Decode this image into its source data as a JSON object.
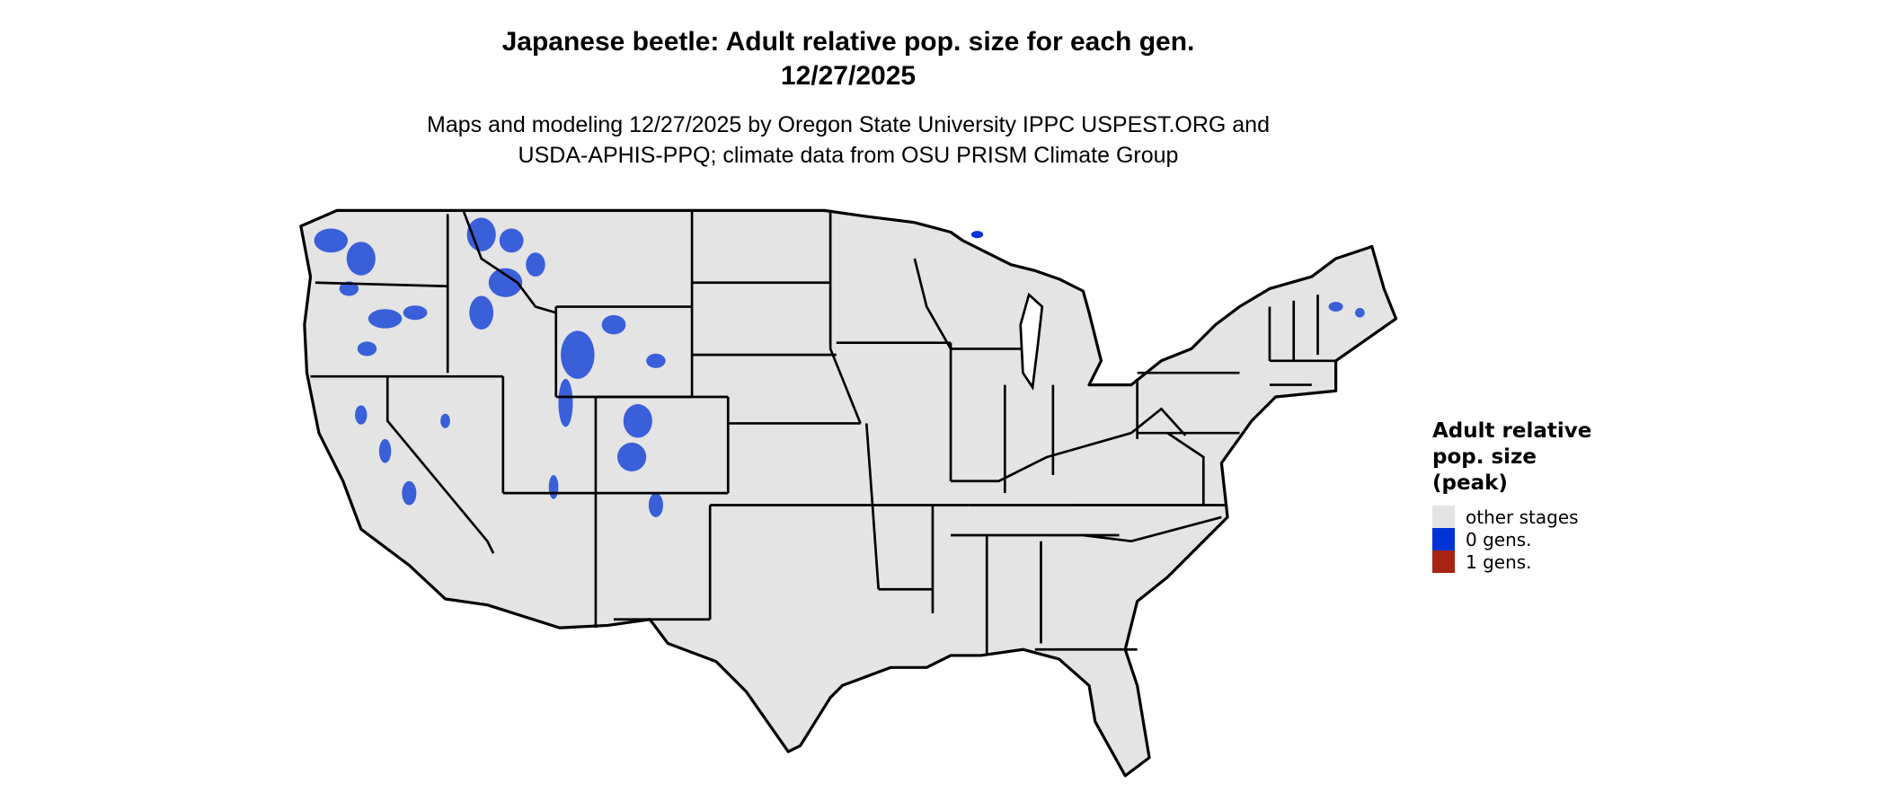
{
  "title": {
    "line1": "Japanese beetle: Adult relative pop. size for each gen.",
    "line2": "12/27/2025"
  },
  "subtitle": {
    "line1": "Maps and modeling 12/27/2025 by Oregon State University IPPC USPEST.ORG and",
    "line2": "USDA-APHIS-PPQ; climate data from OSU PRISM Climate Group"
  },
  "map": {
    "region": "Contiguous United States",
    "land_color": "#e4e4e4",
    "border_color": "#000000"
  },
  "legend": {
    "title_lines": [
      "Adult relative",
      "pop. size",
      "(peak)"
    ],
    "items": [
      {
        "label": "other stages",
        "color": "#e4e4e4"
      },
      {
        "label": "0 gens.",
        "color": "#0033d6"
      },
      {
        "label": "1 gens.",
        "color": "#a82412"
      }
    ]
  }
}
